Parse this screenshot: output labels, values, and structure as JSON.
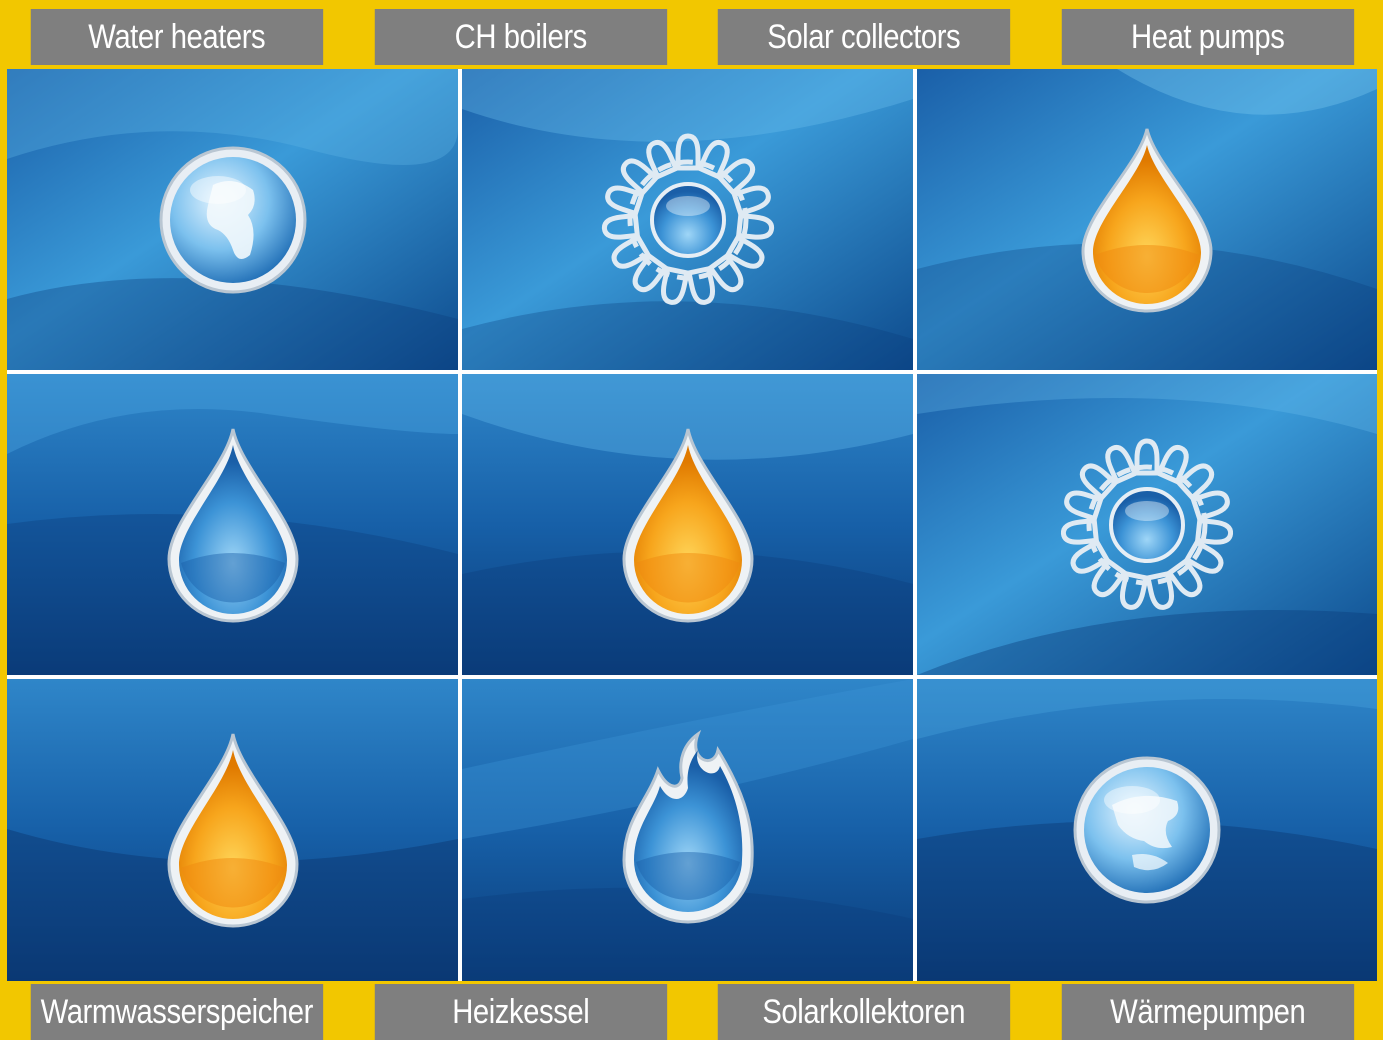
{
  "top_nav": {
    "items": [
      {
        "label": "Water heaters"
      },
      {
        "label": "CH boilers"
      },
      {
        "label": "Solar collectors"
      },
      {
        "label": "Heat pumps"
      }
    ]
  },
  "bottom_nav": {
    "items": [
      {
        "label": "Warmwasserspeicher"
      },
      {
        "label": "Heizkessel"
      },
      {
        "label": "Solarkollektoren"
      },
      {
        "label": "Wärmepumpen"
      }
    ]
  },
  "grid": {
    "tiles": [
      {
        "icon": "globe-icon"
      },
      {
        "icon": "sun-icon"
      },
      {
        "icon": "orange-drop-icon"
      },
      {
        "icon": "blue-drop-icon"
      },
      {
        "icon": "orange-drop-icon"
      },
      {
        "icon": "sun-icon"
      },
      {
        "icon": "orange-drop-icon"
      },
      {
        "icon": "flame-icon"
      },
      {
        "icon": "globe-icon"
      }
    ]
  },
  "colors": {
    "frame": "#f2c700",
    "nav_bg": "#7f7f7f",
    "nav_text": "#ffffff",
    "water_dark": "#0b3d7a",
    "water_light": "#3fa2dd",
    "drop_orange": "#f7a51c"
  }
}
